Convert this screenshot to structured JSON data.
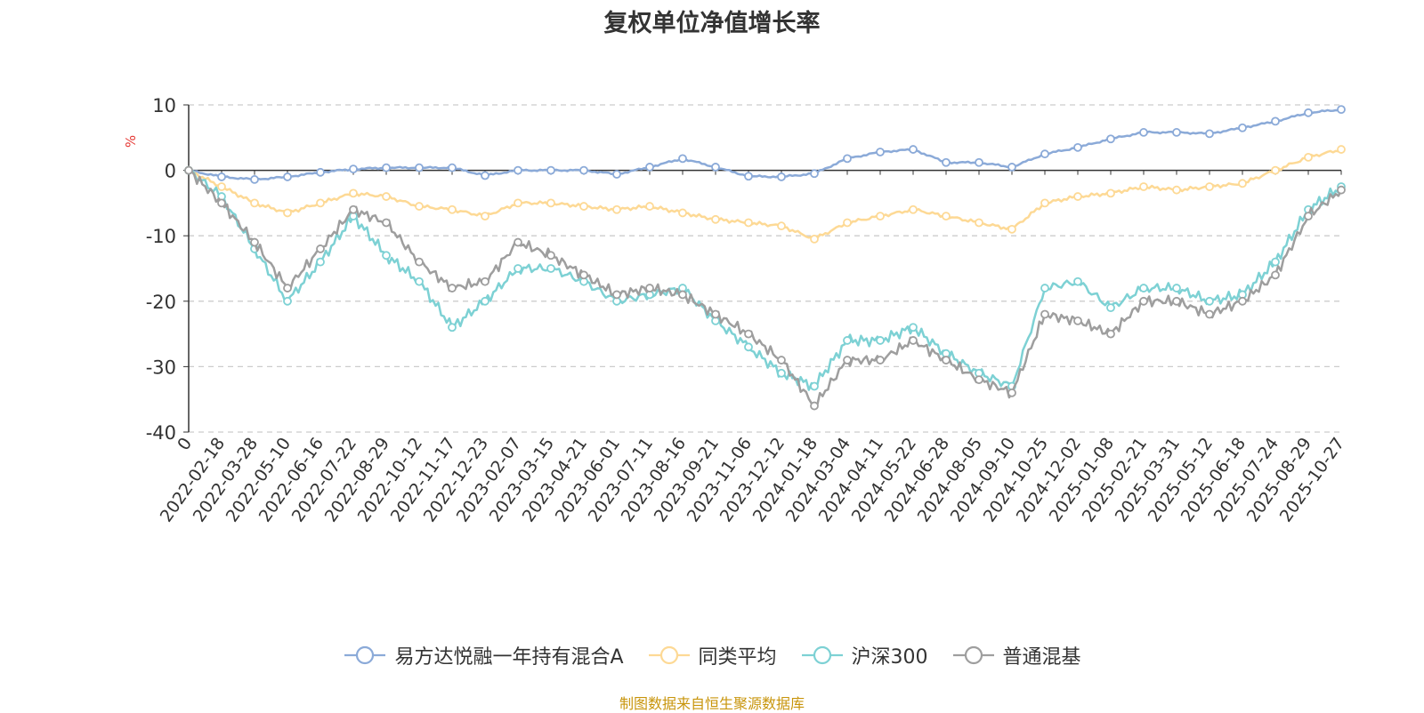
{
  "chart_data": {
    "type": "line",
    "title": "复权单位净值增长率",
    "ylabel": "%",
    "xlabel": "",
    "ylim": [
      -40,
      10
    ],
    "yticks": [
      "10",
      "0",
      "-10",
      "-20",
      "-30",
      "-40"
    ],
    "grid": true,
    "legend_position": "bottom",
    "source": "制图数据来自恒生聚源数据库",
    "source_color": "#c8950c",
    "x_tick_labels": [
      "0",
      "2022-02-18",
      "2022-03-28",
      "2022-05-10",
      "2022-06-16",
      "2022-07-22",
      "2022-08-29",
      "2022-10-12",
      "2022-11-17",
      "2022-12-23",
      "2023-02-07",
      "2023-03-15",
      "2023-04-21",
      "2023-06-01",
      "2023-07-11",
      "2023-08-16",
      "2023-09-21",
      "2023-11-06",
      "2023-12-12",
      "2024-01-18",
      "2024-03-04",
      "2024-04-11",
      "2024-05-22",
      "2024-06-28",
      "2024-08-05",
      "2024-09-10",
      "2024-10-25",
      "2024-12-02",
      "2025-01-08",
      "2025-02-21",
      "2025-03-31",
      "2025-05-12",
      "2025-06-18",
      "2025-07-24",
      "2025-08-29",
      "2025-10-27"
    ],
    "series": [
      {
        "name": "易方达悦融一年持有混合A",
        "color": "#8baad8",
        "values": [
          0,
          -1,
          -1.4,
          -1,
          -0.3,
          0.2,
          0.4,
          0.4,
          0.4,
          -0.8,
          0,
          0,
          0,
          -0.6,
          0.5,
          1.8,
          0.5,
          -0.9,
          -1,
          -0.5,
          1.8,
          2.8,
          3.2,
          1.2,
          1.2,
          0.5,
          2.5,
          3.5,
          4.8,
          5.8,
          5.8,
          5.6,
          6.5,
          7.5,
          8.8,
          9.3
        ]
      },
      {
        "name": "同类平均",
        "color": "#fdd995",
        "values": [
          0,
          -2.5,
          -5,
          -6.5,
          -5,
          -3.5,
          -4,
          -5.5,
          -6,
          -7,
          -5,
          -5,
          -5.5,
          -6,
          -5.5,
          -6.5,
          -7.5,
          -8,
          -8.5,
          -10.5,
          -8,
          -7,
          -6,
          -7,
          -8,
          -9,
          -5,
          -4,
          -3.5,
          -2.5,
          -3,
          -2.5,
          -2,
          0,
          2,
          3.2
        ]
      },
      {
        "name": "沪深300",
        "color": "#7dd1d4",
        "values": [
          0,
          -4,
          -12,
          -20,
          -14,
          -7,
          -13,
          -17,
          -24,
          -20,
          -15,
          -15,
          -17,
          -20,
          -19,
          -18,
          -23,
          -27,
          -31,
          -33,
          -26,
          -26,
          -24,
          -28,
          -31,
          -33,
          -18,
          -17,
          -21,
          -18,
          -18,
          -20,
          -19,
          -14,
          -6,
          -2.5
        ]
      },
      {
        "name": "普通混基",
        "color": "#9e9e9e",
        "values": [
          0,
          -5,
          -11,
          -18,
          -12,
          -6,
          -8,
          -14,
          -18,
          -17,
          -11,
          -13,
          -16,
          -19,
          -18,
          -19,
          -22,
          -25,
          -29,
          -36,
          -29,
          -29,
          -26,
          -29,
          -32,
          -34,
          -22,
          -23,
          -25,
          -20,
          -20,
          -22,
          -20,
          -16,
          -7,
          -3
        ]
      }
    ]
  }
}
